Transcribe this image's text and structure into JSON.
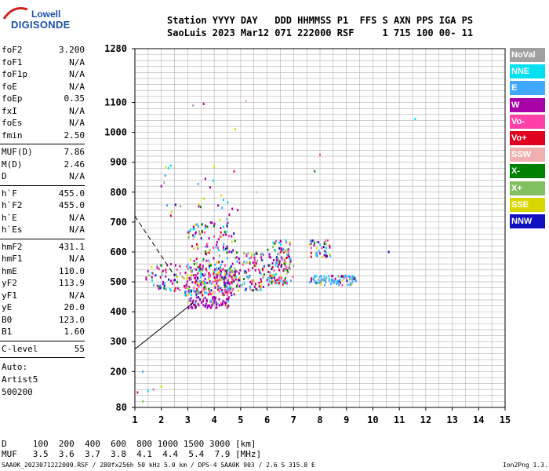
{
  "logo": {
    "line1": "Lowell",
    "line2": "DIGISONDE"
  },
  "header": {
    "line1": "Station YYYY DAY   DDD HHMMSS P1  FFS S AXN PPS IGA PS",
    "line2": "SaoLuis 2023 Mar12 071 222000 RSF     1 715 100 00- 11"
  },
  "params": {
    "group1": [
      {
        "name": "foF2",
        "value": "3.200"
      },
      {
        "name": "foF1",
        "value": "N/A"
      },
      {
        "name": "foF1p",
        "value": "N/A"
      },
      {
        "name": "foE",
        "value": "N/A"
      },
      {
        "name": "foEp",
        "value": "0.35"
      },
      {
        "name": "fxI",
        "value": "N/A"
      },
      {
        "name": "foEs",
        "value": "N/A"
      },
      {
        "name": "fmin",
        "value": "2.50"
      }
    ],
    "group2": [
      {
        "name": "MUF(D)",
        "value": "7.86"
      },
      {
        "name": "M(D)",
        "value": "2.46"
      },
      {
        "name": "D",
        "value": "N/A"
      }
    ],
    "group3": [
      {
        "name": "h`F",
        "value": "455.0"
      },
      {
        "name": "h`F2",
        "value": "455.0"
      },
      {
        "name": "h`E",
        "value": "N/A"
      },
      {
        "name": "h`Es",
        "value": "N/A"
      }
    ],
    "group4": [
      {
        "name": "hmF2",
        "value": "431.1"
      },
      {
        "name": "hmF1",
        "value": "N/A"
      },
      {
        "name": "hmE",
        "value": "110.0"
      },
      {
        "name": "yF2",
        "value": "113.9"
      },
      {
        "name": "yF1",
        "value": "N/A"
      },
      {
        "name": "yE",
        "value": "20.0"
      },
      {
        "name": "B0",
        "value": "123.0"
      },
      {
        "name": "B1",
        "value": "1.60"
      }
    ],
    "group5": [
      {
        "name": "C-level",
        "value": "55"
      }
    ],
    "auto": [
      "Auto:",
      "Artist5",
      "500200"
    ]
  },
  "legend": [
    {
      "label": "NoVal",
      "color": "#a0a0a0"
    },
    {
      "label": "NNE",
      "color": "#00e0f0"
    },
    {
      "label": "E",
      "color": "#40a8ff"
    },
    {
      "label": "W",
      "color": "#a800a8"
    },
    {
      "label": "Vo-",
      "color": "#ff40a8"
    },
    {
      "label": "Vo+",
      "color": "#e00020"
    },
    {
      "label": "SSW",
      "color": "#f0b0b0"
    },
    {
      "label": "X-",
      "color": "#008000"
    },
    {
      "label": "X+",
      "color": "#80c060"
    },
    {
      "label": "SSE",
      "color": "#d8d800"
    },
    {
      "label": "NNW",
      "color": "#1010c0"
    }
  ],
  "footer": {
    "d_row": "D     100  200  400  600  800 1000 1500 3000 [km]",
    "muf_row": "MUF   3.5  3.6  3.7  3.8  4.1  4.4  5.4  7.9 [MHz]",
    "note": "SAA0K_2023071222000.RSF / 280fx256h 50 kHz 5.0 km / DPS-4 SAA0K 903 / 2.6 S 315.8 E",
    "version": "Ion2Png 1.3.17"
  },
  "chart_data": {
    "type": "scatter",
    "title": "",
    "xlabel": "",
    "ylabel": "",
    "xlim": [
      1,
      15
    ],
    "ylim": [
      80,
      1280
    ],
    "x_ticks": [
      1,
      2,
      3,
      4,
      5,
      6,
      7,
      8,
      9,
      10,
      11,
      12,
      13,
      14,
      15
    ],
    "y_ticks": [
      80,
      200,
      300,
      400,
      500,
      600,
      700,
      800,
      900,
      1000,
      1100,
      1280
    ],
    "y_tick_labels": [
      "80",
      "200",
      "300",
      "400",
      "500",
      "600",
      "700",
      "800",
      "900",
      "1000",
      "1100",
      "1280"
    ],
    "grid": true,
    "traces": {
      "solid_line": [
        [
          1.0,
          275
        ],
        [
          3.2,
          430
        ]
      ],
      "dashed_line": [
        [
          1.0,
          720
        ],
        [
          2.5,
          520
        ]
      ]
    },
    "echo_clusters": [
      {
        "f_range": [
          2.9,
          4.8
        ],
        "h_range": [
          455,
          555
        ],
        "count": 280
      },
      {
        "f_range": [
          3.0,
          4.6
        ],
        "h_range": [
          410,
          450
        ],
        "count": 90
      },
      {
        "f_range": [
          3.0,
          4.8
        ],
        "h_range": [
          555,
          700
        ],
        "count": 120
      },
      {
        "f_range": [
          4.8,
          5.9
        ],
        "h_range": [
          470,
          600
        ],
        "count": 110
      },
      {
        "f_range": [
          6.0,
          7.0
        ],
        "h_range": [
          490,
          610
        ],
        "count": 80
      },
      {
        "f_range": [
          6.2,
          6.9
        ],
        "h_range": [
          555,
          640
        ],
        "count": 40
      },
      {
        "f_range": [
          7.6,
          8.4
        ],
        "h_range": [
          580,
          640
        ],
        "count": 45
      },
      {
        "f_range": [
          7.5,
          9.4
        ],
        "h_range": [
          488,
          520
        ],
        "count": 90
      },
      {
        "f_range": [
          6.0,
          6.7
        ],
        "h_range": [
          492,
          515
        ],
        "count": 25
      },
      {
        "f_range": [
          1.4,
          2.9
        ],
        "h_range": [
          470,
          560
        ],
        "count": 60
      },
      {
        "f_range": [
          2.1,
          4.9
        ],
        "h_range": [
          700,
          900
        ],
        "count": 30
      }
    ],
    "isolated_points": [
      [
        3.2,
        1090
      ],
      [
        3.6,
        1095
      ],
      [
        5.2,
        1105
      ],
      [
        4.8,
        1010
      ],
      [
        11.6,
        1045
      ],
      [
        8.0,
        925
      ],
      [
        7.8,
        870
      ],
      [
        10.6,
        600
      ],
      [
        1.3,
        200
      ],
      [
        1.1,
        130
      ],
      [
        1.3,
        100
      ],
      [
        1.7,
        140
      ],
      [
        2.0,
        820
      ],
      [
        5.6,
        800
      ],
      [
        2.0,
        150
      ],
      [
        1.5,
        135
      ]
    ]
  }
}
